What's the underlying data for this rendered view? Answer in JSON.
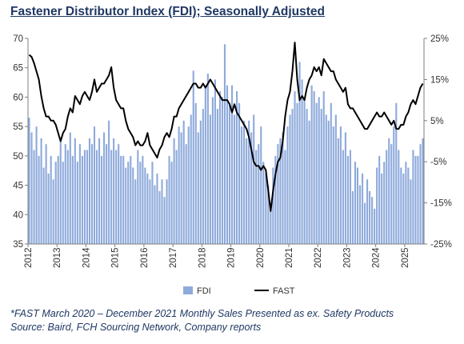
{
  "title": "Fastener Distributor Index (FDI); Seasonally Adjusted",
  "footnotes": [
    "*FAST March 2020 – December 2021 Monthly Sales Presented as ex. Safety Products",
    "Source: Baird, FCH Sourcing Network, Company reports"
  ],
  "colors": {
    "bar": "#8eaadb",
    "bar_edge": "#6f8fc9",
    "line": "#000000",
    "title": "#1f3864"
  },
  "chart_data": {
    "type": "bar+line",
    "x_start": "2012-01",
    "x_labels": [
      "2012",
      "2013",
      "2014",
      "2015",
      "2016",
      "2017",
      "2018",
      "2019",
      "2020",
      "2021",
      "2022",
      "2023",
      "2024",
      "2025"
    ],
    "y_left": {
      "min": 35,
      "max": 70,
      "ticks": [
        "35",
        "40",
        "45",
        "50",
        "55",
        "60",
        "65",
        "70"
      ]
    },
    "y_right": {
      "min": -25,
      "max": 25,
      "ticks": [
        "-25%",
        "-15%",
        "-5%",
        "5%",
        "15%",
        "25%"
      ]
    },
    "grid": false,
    "legend_position": "bottom",
    "series": [
      {
        "name": "FDI",
        "type": "bar",
        "axis": "left",
        "values": [
          56.5,
          54,
          51,
          55,
          50,
          53,
          48,
          52,
          47,
          50,
          46,
          49,
          50,
          53,
          49,
          52,
          51,
          54,
          50,
          53,
          49,
          52,
          50,
          51,
          51,
          53,
          52,
          55,
          51,
          53,
          50,
          54,
          52,
          56,
          51,
          53,
          51,
          52,
          50,
          50,
          48,
          49,
          50,
          48,
          46,
          51,
          49,
          50,
          48,
          47,
          46,
          49,
          45,
          47,
          44,
          46,
          43,
          46,
          50,
          49,
          53,
          51,
          55,
          54,
          56,
          52,
          55,
          57,
          64.5,
          59,
          54,
          56,
          58,
          62,
          64,
          57,
          60,
          63,
          58,
          61,
          60,
          69,
          62,
          59,
          62,
          57,
          61,
          59,
          55,
          56,
          53,
          56,
          54,
          57,
          51,
          52,
          55,
          49,
          47,
          45,
          42,
          48,
          50,
          52,
          53,
          54,
          51,
          55,
          57,
          58,
          61,
          59,
          66,
          63,
          60,
          58,
          56,
          62,
          61,
          59,
          60,
          58,
          61,
          57,
          56,
          59,
          55,
          57,
          53,
          55,
          51,
          54,
          50,
          51,
          44,
          49,
          48,
          45,
          47,
          42,
          46,
          44,
          43,
          41,
          48,
          50,
          47,
          49,
          51,
          53,
          52,
          55,
          59,
          51,
          48,
          47,
          49,
          48,
          46,
          51,
          50,
          50,
          52,
          53
        ]
      },
      {
        "name": "FAST",
        "type": "line",
        "axis": "right",
        "values": [
          21,
          20.5,
          19,
          17,
          15,
          11,
          8,
          6,
          6,
          5,
          5,
          4,
          2,
          0,
          2,
          3,
          6,
          8,
          7,
          11,
          10,
          9,
          11,
          12,
          11,
          10,
          12,
          15,
          12,
          13,
          14,
          14,
          15,
          16,
          18,
          13,
          10,
          9,
          8,
          8,
          5,
          3,
          2,
          1,
          -1,
          0,
          -1,
          -1,
          0,
          2,
          -1,
          -2,
          -3,
          -4,
          -2,
          -1,
          1,
          2,
          1,
          3,
          6,
          6,
          8,
          9,
          10,
          11,
          12,
          13,
          14,
          14,
          13,
          13,
          14,
          13,
          14,
          15,
          14,
          13,
          12,
          11,
          10,
          10,
          10,
          9,
          7,
          9,
          7,
          6,
          5,
          4,
          3,
          1,
          -2,
          -5,
          -6,
          -6,
          -7,
          -6,
          -7,
          -12,
          -17,
          -12,
          -8,
          -5,
          -4,
          0,
          6,
          10,
          12,
          17,
          24,
          15,
          10,
          11,
          10,
          13,
          15,
          16,
          18,
          17,
          18,
          16,
          20,
          19,
          18,
          17,
          17,
          15,
          14,
          13,
          12,
          13,
          9,
          8,
          8,
          7,
          6,
          5,
          4,
          3,
          3,
          4,
          5,
          6,
          7,
          6,
          6,
          7,
          6,
          5,
          4,
          5,
          3,
          3,
          4,
          4,
          6,
          7,
          9,
          10,
          9,
          11,
          13,
          14
        ]
      }
    ]
  }
}
